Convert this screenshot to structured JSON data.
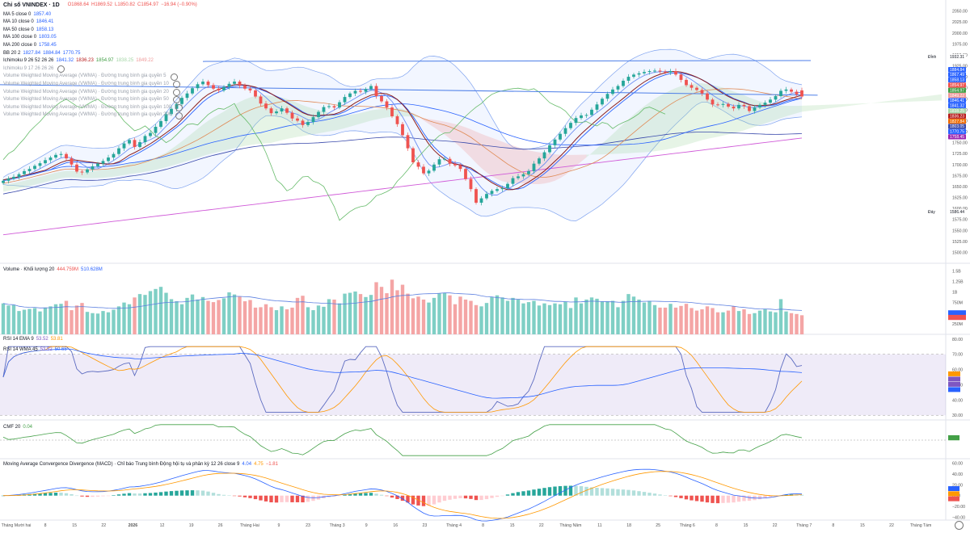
{
  "header": {
    "title": "Chỉ số VNINDEX · 1D",
    "ohlc": {
      "o": "O1868.64",
      "h": "H1869.52",
      "l": "L1850.82",
      "c": "C1854.97",
      "chg": "−16.94 (−0.90%)"
    }
  },
  "legend": [
    {
      "label": "MA 5 close 0",
      "values": [
        "1857.40"
      ],
      "colors": [
        "#2962ff"
      ]
    },
    {
      "label": "MA 10 close 0",
      "values": [
        "1846.41"
      ],
      "colors": [
        "#2962ff"
      ]
    },
    {
      "label": "MA 50 close 0",
      "values": [
        "1858.13"
      ],
      "colors": [
        "#2962ff"
      ]
    },
    {
      "label": "MA 100 close 0",
      "values": [
        "1803.05"
      ],
      "colors": [
        "#2962ff"
      ]
    },
    {
      "label": "MA 200 close 0",
      "values": [
        "1758.45"
      ],
      "colors": [
        "#2962ff"
      ]
    },
    {
      "label": "BB 20 2",
      "values": [
        "1827.84",
        "1884.84",
        "1770.75"
      ],
      "colors": [
        "#2962ff",
        "#2962ff",
        "#2962ff"
      ]
    },
    {
      "label": "Ichimoku 9 26 52 26 26",
      "values": [
        "1841.32",
        "1836.23",
        "1854.97",
        "1838.25",
        "1849.22"
      ],
      "colors": [
        "#2962ff",
        "#b71c1c",
        "#43a047",
        "#a5d6a7",
        "#ef9a9a"
      ]
    },
    {
      "label": "Ichimoku 9 17 26 26 26",
      "values": [],
      "colors": [],
      "muted": true
    },
    {
      "label": "Volume Weighted Moving Average (VWMA) · Đường trung bình gia quyền 5",
      "values": [],
      "colors": [],
      "muted": true
    },
    {
      "label": "Volume Weighted Moving Average (VWMA) · Đường trung bình gia quyền 10",
      "values": [],
      "colors": [],
      "muted": true
    },
    {
      "label": "Volume Weighted Moving Average (VWMA) · Đường trung bình gia quyền 20",
      "values": [],
      "colors": [],
      "muted": true
    },
    {
      "label": "Volume Weighted Moving Average (VWMA) · Đường trung bình gia quyền 50",
      "values": [],
      "colors": [],
      "muted": true
    },
    {
      "label": "Volume Weighted Moving Average (VWMA) · Đường trung bình gia quyền 100",
      "values": [],
      "colors": [],
      "muted": true
    },
    {
      "label": "Volume Weighted Moving Average (VWMA) · Đường trung bình gia quyền 200",
      "values": [],
      "colors": [],
      "muted": true
    }
  ],
  "panels": {
    "volume": {
      "label": "Volume · Khối lượng 20",
      "values": [
        "444.759M",
        "510.628M"
      ]
    },
    "rsi": {
      "label1": "RSI 14 EMA 9",
      "values1": [
        "53.52",
        "53.81"
      ],
      "label2": "RSI 14 WMA 45",
      "values2": [
        "53.52",
        "50.65"
      ]
    },
    "cmf": {
      "label": "CMF 20",
      "values": [
        "0.04"
      ]
    },
    "macd": {
      "label": "Moving Average Convergence Divergence (MACD) · Chỉ báo Trung bình Động hội tụ và phân kỳ 12 26 close 9",
      "values": [
        "4.04",
        "4.75",
        "−1.81"
      ]
    }
  },
  "colors": {
    "up": "#26a69a",
    "down": "#ef5350",
    "up_vol": "#7fcfc5",
    "down_vol": "#f4a5a5",
    "ma_blue": "#2962ff",
    "rsi_band": "#7e57c2"
  },
  "chart_data": [
    {
      "type": "candlestick",
      "title": "Chỉ số VNINDEX · 1D",
      "ylim": [
        1475,
        2075
      ],
      "y_ticks": [
        "2050.00",
        "2025.00",
        "2000.00",
        "1975.00",
        "1950.00",
        "1925.00",
        "1900.00",
        "1875.00",
        "1850.00",
        "1825.00",
        "1800.00",
        "1775.00",
        "1750.00",
        "1725.00",
        "1700.00",
        "1675.00",
        "1650.00",
        "1625.00",
        "1600.00",
        "1575.00",
        "1550.00",
        "1525.00",
        "1500.00"
      ],
      "x_ticks": [
        "Tháng Mười hai",
        "8",
        "15",
        "22",
        "2026",
        "12",
        "19",
        "26",
        "Tháng Hai",
        "9",
        "23",
        "Tháng 3",
        "9",
        "16",
        "23",
        "Tháng 4",
        "8",
        "15",
        "22",
        "Tháng Năm",
        "11",
        "18",
        "25",
        "Tháng 6",
        "8",
        "15",
        "22",
        "Tháng 7",
        "8",
        "15",
        "22",
        "Tháng Tám"
      ],
      "closes": [
        1663,
        1668,
        1672,
        1678,
        1685,
        1690,
        1697,
        1703,
        1710,
        1716,
        1722,
        1724,
        1714,
        1700,
        1684,
        1682,
        1689,
        1696,
        1702,
        1708,
        1716,
        1724,
        1737,
        1748,
        1756,
        1740,
        1751,
        1765,
        1772,
        1786,
        1799,
        1815,
        1827,
        1838,
        1852,
        1862,
        1874,
        1883,
        1889,
        1881,
        1873,
        1869,
        1877,
        1884,
        1889,
        1880,
        1873,
        1869,
        1855,
        1839,
        1828,
        1817,
        1821,
        1828,
        1818,
        1805,
        1800,
        1790,
        1797,
        1808,
        1820,
        1831,
        1833,
        1830,
        1842,
        1854,
        1862,
        1868,
        1866,
        1872,
        1879,
        1856,
        1844,
        1830,
        1810,
        1792,
        1767,
        1737,
        1705,
        1695,
        1680,
        1686,
        1700,
        1712,
        1713,
        1702,
        1698,
        1690,
        1667,
        1644,
        1613,
        1623,
        1633,
        1640,
        1644,
        1646,
        1656,
        1669,
        1673,
        1678,
        1685,
        1702,
        1714,
        1728,
        1744,
        1757,
        1770,
        1783,
        1795,
        1806,
        1812,
        1813,
        1825,
        1837,
        1850,
        1861,
        1871,
        1879,
        1891,
        1900,
        1905,
        1908,
        1911,
        1913,
        1914,
        1912,
        1910,
        1913,
        1905,
        1893,
        1881,
        1875,
        1870,
        1862,
        1848,
        1837,
        1836,
        1838,
        1832,
        1828,
        1836,
        1833,
        1822,
        1830,
        1836,
        1841,
        1848,
        1856,
        1868,
        1871,
        1866,
        1860,
        1855
      ],
      "opens": [
        1658,
        1663,
        1668,
        1672,
        1678,
        1685,
        1690,
        1697,
        1703,
        1710,
        1716,
        1722,
        1724,
        1714,
        1700,
        1684,
        1682,
        1689,
        1696,
        1702,
        1708,
        1716,
        1724,
        1737,
        1748,
        1756,
        1740,
        1751,
        1765,
        1772,
        1786,
        1799,
        1815,
        1827,
        1838,
        1852,
        1862,
        1874,
        1883,
        1889,
        1881,
        1873,
        1869,
        1877,
        1884,
        1889,
        1880,
        1873,
        1869,
        1855,
        1839,
        1828,
        1817,
        1821,
        1828,
        1818,
        1805,
        1800,
        1790,
        1797,
        1808,
        1820,
        1831,
        1833,
        1830,
        1842,
        1854,
        1862,
        1868,
        1866,
        1872,
        1879,
        1856,
        1844,
        1830,
        1810,
        1792,
        1767,
        1737,
        1705,
        1695,
        1680,
        1686,
        1700,
        1712,
        1713,
        1702,
        1698,
        1690,
        1667,
        1644,
        1613,
        1623,
        1633,
        1640,
        1644,
        1646,
        1656,
        1669,
        1673,
        1678,
        1685,
        1702,
        1714,
        1728,
        1744,
        1757,
        1770,
        1783,
        1795,
        1806,
        1812,
        1813,
        1825,
        1837,
        1850,
        1861,
        1871,
        1879,
        1891,
        1900,
        1905,
        1908,
        1911,
        1913,
        1914,
        1912,
        1910,
        1913,
        1905,
        1893,
        1881,
        1875,
        1870,
        1862,
        1848,
        1837,
        1836,
        1838,
        1832,
        1828,
        1836,
        1833,
        1822,
        1830,
        1836,
        1841,
        1848,
        1856,
        1868,
        1871,
        1866,
        1869
      ],
      "price_labels": [
        {
          "value": "1932.31",
          "label": "Đỉnh",
          "color": "#ffffff",
          "text": "#131722"
        },
        {
          "value": "1884.84",
          "color": "#2962ff"
        },
        {
          "value": "1867.49",
          "color": "#2962ff"
        },
        {
          "value": "1858.13",
          "color": "#2962ff"
        },
        {
          "value": "1854.97",
          "color": "#ef5350"
        },
        {
          "value": "1854.97",
          "color": "#43a047"
        },
        {
          "value": "1849.22",
          "color": "#ef9a9a"
        },
        {
          "value": "1846.41",
          "color": "#2962ff"
        },
        {
          "value": "1841.32",
          "color": "#2962ff"
        },
        {
          "value": "1838.25",
          "color": "#a5d6a7"
        },
        {
          "value": "1836.23",
          "color": "#b71c1c"
        },
        {
          "value": "1827.84",
          "color": "#ef6c00"
        },
        {
          "value": "1803.05",
          "color": "#3949ab"
        },
        {
          "value": "1770.75",
          "color": "#2962ff"
        },
        {
          "value": "1758.45",
          "color": "#9c27b0"
        },
        {
          "value": "1586.44",
          "label": "Đáy",
          "color": "#ffffff",
          "text": "#131722"
        }
      ]
    },
    {
      "type": "bar",
      "title": "Volume · Khối lượng 20",
      "y_ticks": [
        "1.5B",
        "1.25B",
        "1B",
        "750M",
        "500M",
        "250M"
      ],
      "values": [
        0.73,
        0.68,
        0.69,
        0.55,
        0.58,
        0.6,
        0.62,
        0.54,
        0.63,
        0.66,
        0.71,
        0.72,
        0.79,
        0.57,
        0.68,
        0.74,
        0.53,
        0.5,
        0.49,
        0.55,
        0.52,
        0.58,
        0.66,
        0.75,
        0.71,
        0.87,
        0.95,
        0.93,
        1.02,
        1.07,
        1.12,
        0.98,
        0.83,
        0.78,
        0.71,
        0.86,
        0.94,
        0.82,
        0.88,
        0.79,
        0.76,
        0.81,
        0.85,
        0.99,
        0.94,
        0.89,
        0.78,
        0.81,
        0.63,
        0.64,
        0.71,
        0.64,
        0.57,
        0.66,
        0.59,
        0.63,
        0.86,
        0.91,
        0.64,
        0.57,
        0.68,
        0.65,
        0.83,
        0.82,
        0.73,
        0.96,
        0.98,
        1.01,
        0.95,
        0.88,
        0.93,
        1.23,
        1.12,
        0.97,
        1.29,
        1.04,
        1.17,
        0.96,
        0.85,
        0.89,
        0.82,
        0.75,
        0.86,
        0.96,
        0.98,
        0.92,
        0.71,
        0.89,
        0.82,
        0.79,
        0.69,
        0.66,
        0.74,
        0.88,
        0.92,
        0.87,
        0.79,
        0.86,
        0.82,
        0.73,
        0.76,
        0.79,
        0.68,
        0.73,
        0.69,
        0.73,
        0.71,
        0.77,
        0.62,
        0.87,
        0.73,
        0.82,
        0.87,
        0.84,
        0.78,
        0.78,
        0.79,
        0.64,
        0.79,
        0.95,
        0.89,
        0.82,
        0.75,
        0.79,
        0.69,
        0.63,
        0.63,
        0.72,
        0.63,
        0.67,
        0.72,
        0.62,
        0.56,
        0.59,
        0.66,
        0.62,
        0.52,
        0.52,
        0.56,
        0.66,
        0.55,
        0.59,
        0.48,
        0.5,
        0.56,
        0.6,
        0.54,
        0.52,
        0.83,
        0.54,
        0.5,
        0.48,
        0.45
      ],
      "ylim": [
        0,
        1.6
      ]
    },
    {
      "type": "line",
      "title": "RSI 14 EMA 9",
      "y_ticks": [
        "80.00",
        "70.00",
        "60.00",
        "50.00",
        "40.00",
        "30.00"
      ],
      "ylim": [
        28,
        82
      ],
      "band": [
        30,
        70
      ],
      "series": [
        {
          "name": "RSI",
          "color": "#7e57c2"
        },
        {
          "name": "EMA",
          "color": "#ff9800"
        },
        {
          "name": "WMA",
          "color": "#2962ff"
        }
      ]
    },
    {
      "type": "line",
      "title": "CMF 20",
      "ylim": [
        -0.3,
        0.3
      ],
      "series": [
        {
          "name": "CMF",
          "color": "#43a047"
        }
      ]
    },
    {
      "type": "bar",
      "title": "MACD",
      "y_ticks": [
        "60.00",
        "40.00",
        "20.00",
        "0.00",
        "−20.00",
        "−40.00"
      ],
      "ylim": [
        -45,
        65
      ]
    }
  ]
}
